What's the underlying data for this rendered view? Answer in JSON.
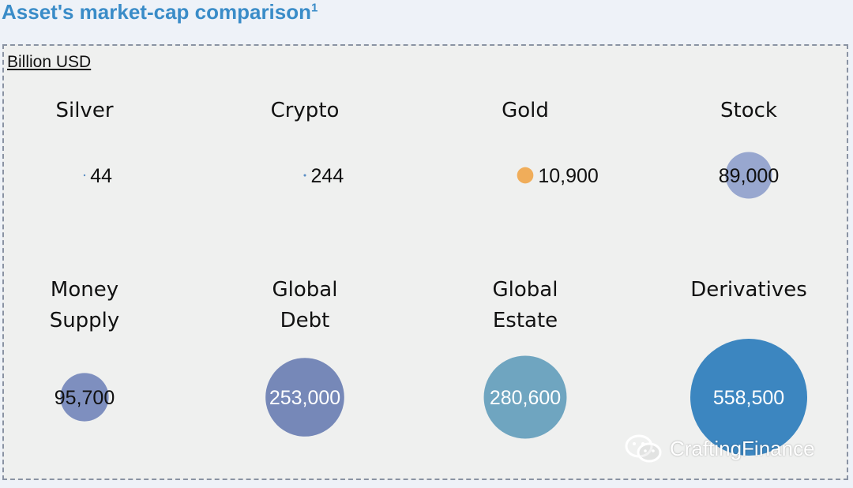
{
  "title": "Asset's market-cap comparison",
  "title_superscript": "1",
  "unit_label": "Billion USD",
  "watermark": "CraftingFinance",
  "chart_data": {
    "type": "bubble",
    "items": [
      {
        "name": "Silver",
        "value": 44,
        "display": "44",
        "color": "#5b8ec4"
      },
      {
        "name": "Crypto",
        "value": 244,
        "display": "244",
        "color": "#5b8ec4"
      },
      {
        "name": "Gold",
        "value": 10900,
        "display": "10,900",
        "color": "#f0ad5a"
      },
      {
        "name": "Stock",
        "value": 89000,
        "display": "89,000",
        "color": "#98a7cf"
      },
      {
        "name": "Money Supply",
        "lines": [
          "Money",
          "Supply"
        ],
        "value": 95700,
        "display": "95,700",
        "color": "#7e8fbf"
      },
      {
        "name": "Global Debt",
        "lines": [
          "Global",
          "Debt"
        ],
        "value": 253000,
        "display": "253,000",
        "color": "#7688b8"
      },
      {
        "name": "Global Estate",
        "lines": [
          "Global",
          "Estate"
        ],
        "value": 280600,
        "display": "280,600",
        "color": "#6fa5c0"
      },
      {
        "name": "Derivatives",
        "value": 558500,
        "display": "558,500",
        "color": "#3c86c0"
      }
    ]
  }
}
